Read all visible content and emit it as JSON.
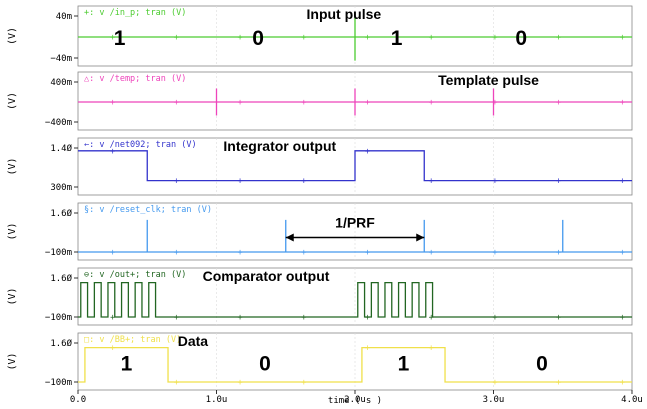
{
  "chart_data": {
    "type": "line",
    "xlabel": "time ( s )",
    "xlim": [
      0,
      4.0
    ],
    "x_ticks": [
      "0.0",
      "1.0u",
      "2.0u",
      "3.0u",
      "4.0u"
    ],
    "panels": [
      {
        "name": "v /in_p; tran (V)",
        "marker": "+",
        "color": "#4ccc30",
        "ylabel": "(V)",
        "ylim": [
          -0.04,
          0.04
        ],
        "ticks": [
          {
            "v": 0.04,
            "t": "40m"
          },
          {
            "v": -0.04,
            "t": "−40m"
          }
        ],
        "baseline": 0,
        "spikes": [
          {
            "x": 2.0,
            "h": 0.045
          }
        ],
        "bits": [
          {
            "x": 0.3,
            "t": "1"
          },
          {
            "x": 1.3,
            "t": "0"
          },
          {
            "x": 2.3,
            "t": "1"
          },
          {
            "x": 3.2,
            "t": "0"
          }
        ],
        "annotation": {
          "text": "Input pulse",
          "x": 1.65
        }
      },
      {
        "name": "v /temp; tran (V)",
        "marker": "△",
        "color": "#ee44bb",
        "ylabel": "(V)",
        "ylim": [
          -0.4,
          0.4
        ],
        "ticks": [
          {
            "v": 0.4,
            "t": "400m"
          },
          {
            "v": -0.4,
            "t": "−400m"
          }
        ],
        "baseline": 0,
        "spikes": [
          {
            "x": 1.0,
            "h": 0.27
          },
          {
            "x": 2.0,
            "h": 0.27
          },
          {
            "x": 3.0,
            "h": 0.27
          }
        ],
        "annotation": {
          "text": "Template pulse",
          "x": 2.6
        }
      },
      {
        "name": "v /net092; tran (V)",
        "marker": "←",
        "color": "#3333cc",
        "ylabel": "(V)",
        "ylim": [
          0.3,
          1.4
        ],
        "ticks": [
          {
            "v": 1.4,
            "t": "1.4Ø"
          },
          {
            "v": 0.3,
            "t": "300m"
          }
        ],
        "wave": [
          [
            0,
            1.32
          ],
          [
            0.5,
            1.32
          ],
          [
            0.5,
            0.48
          ],
          [
            2.0,
            0.48
          ],
          [
            2.0,
            1.32
          ],
          [
            2.5,
            1.32
          ],
          [
            2.5,
            0.48
          ],
          [
            4.0,
            0.48
          ]
        ],
        "annotation": {
          "text": "Integrator output",
          "x": 1.05
        }
      },
      {
        "name": "v /reset_clk; tran (V)",
        "marker": "§",
        "color": "#4499ee",
        "ylabel": "(V)",
        "ylim": [
          -0.1,
          1.6
        ],
        "ticks": [
          {
            "v": 1.6,
            "t": "1.6Ø"
          },
          {
            "v": -0.1,
            "t": "−100m"
          }
        ],
        "baseline": -0.1,
        "spikes": [
          {
            "x": 0.5,
            "h": 1.4
          },
          {
            "x": 1.5,
            "h": 1.4
          },
          {
            "x": 2.5,
            "h": 1.4
          },
          {
            "x": 3.5,
            "h": 1.4
          }
        ],
        "span": {
          "x1": 1.5,
          "x2": 2.5,
          "text": "1/PRF"
        }
      },
      {
        "name": "v /out+; tran (V)",
        "marker": "⊖",
        "color": "#226622",
        "ylabel": "(V)",
        "ylim": [
          -0.1,
          1.6
        ],
        "ticks": [
          {
            "v": 1.6,
            "t": "1.6Ø"
          },
          {
            "v": -0.1,
            "t": "−100m"
          }
        ],
        "baseline": -0.1,
        "pulse_trains": [
          {
            "x1": 0.02,
            "x2": 0.56,
            "n": 6
          },
          {
            "x1": 2.02,
            "x2": 2.56,
            "n": 6
          }
        ],
        "annotation": {
          "text": "Comparator output",
          "x": 0.9
        }
      },
      {
        "name": "v /BB+; tran (V)",
        "marker": "□",
        "color": "#f0e04a",
        "ylabel": "(V)",
        "ylim": [
          -0.1,
          1.6
        ],
        "ticks": [
          {
            "v": 1.6,
            "t": "1.6Ø"
          },
          {
            "v": -0.1,
            "t": "−100m"
          }
        ],
        "wave": [
          [
            0,
            -0.1
          ],
          [
            0.05,
            -0.1
          ],
          [
            0.05,
            1.4
          ],
          [
            0.65,
            1.4
          ],
          [
            0.65,
            -0.1
          ],
          [
            2.05,
            -0.1
          ],
          [
            2.05,
            1.4
          ],
          [
            2.65,
            1.4
          ],
          [
            2.65,
            -0.1
          ],
          [
            4.0,
            -0.1
          ]
        ],
        "bits": [
          {
            "x": 0.35,
            "t": "1"
          },
          {
            "x": 1.35,
            "t": "0"
          },
          {
            "x": 2.35,
            "t": "1"
          },
          {
            "x": 3.35,
            "t": "0"
          }
        ],
        "annotation": {
          "text": "Data",
          "x": 0.72
        }
      }
    ]
  }
}
